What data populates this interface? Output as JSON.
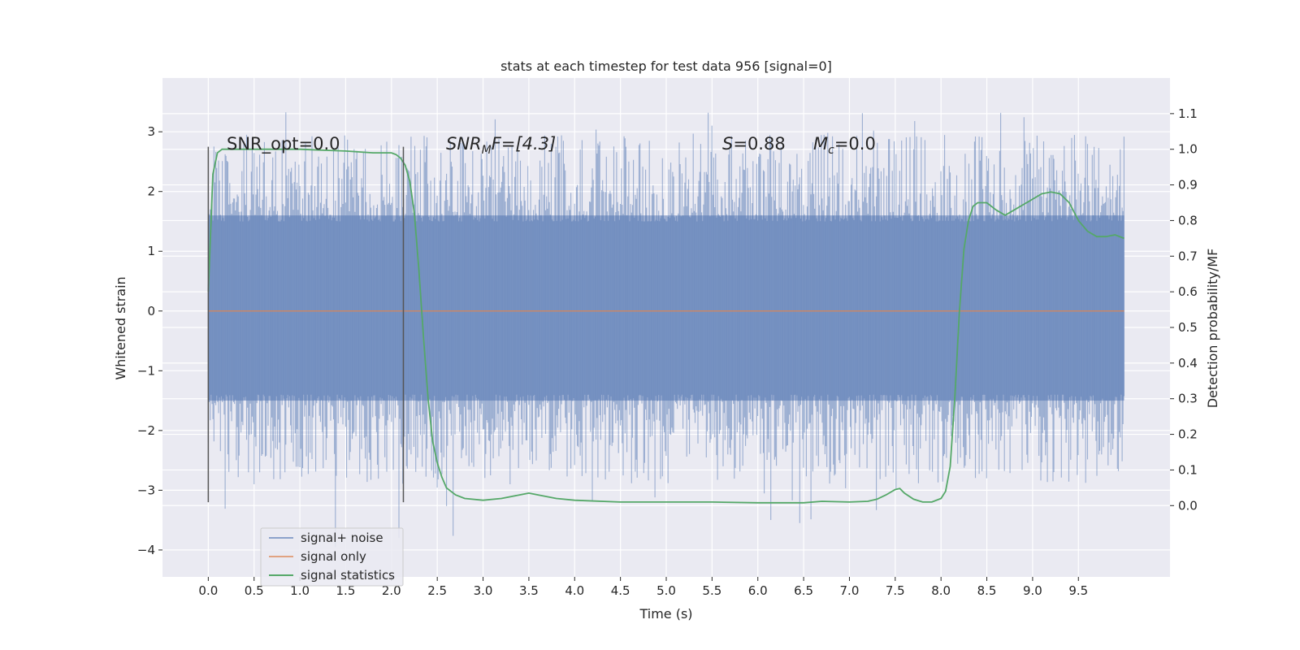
{
  "chart_data": {
    "type": "line",
    "title": "stats at each timestep for test data 956 [signal=0]",
    "xlabel": "Time (s)",
    "ylabel_left": "Whitened strain",
    "ylabel_right": "Detection probability/MF",
    "xlim": [
      -0.5,
      10.5
    ],
    "ylim_left": [
      -4.45,
      3.9
    ],
    "ylim_right": [
      -0.2,
      1.2
    ],
    "x_ticks": [
      "0.0",
      "0.5",
      "1.0",
      "1.5",
      "2.0",
      "2.5",
      "3.0",
      "3.5",
      "4.0",
      "4.5",
      "5.0",
      "5.5",
      "6.0",
      "6.5",
      "7.0",
      "7.5",
      "8.0",
      "8.5",
      "9.0",
      "9.5"
    ],
    "x_tick_values": [
      0.0,
      0.5,
      1.0,
      1.5,
      2.0,
      2.5,
      3.0,
      3.5,
      4.0,
      4.5,
      5.0,
      5.5,
      6.0,
      6.5,
      7.0,
      7.5,
      8.0,
      8.5,
      9.0,
      9.5
    ],
    "y_ticks_left": [
      "−4",
      "−3",
      "−2",
      "−1",
      "0",
      "1",
      "2",
      "3"
    ],
    "y_tick_values_left": [
      -4,
      -3,
      -2,
      -1,
      0,
      1,
      2,
      3
    ],
    "y_ticks_right": [
      "0.0",
      "0.1",
      "0.2",
      "0.3",
      "0.4",
      "0.5",
      "0.6",
      "0.7",
      "0.8",
      "0.9",
      "1.0",
      "1.1"
    ],
    "y_tick_values_right": [
      0.0,
      0.1,
      0.2,
      0.3,
      0.4,
      0.5,
      0.6,
      0.7,
      0.8,
      0.9,
      1.0,
      1.1
    ],
    "grid": true,
    "legend_position": "lower-left",
    "noise_band": {
      "x_range": [
        0.0,
        10.0
      ],
      "core_range": [
        -1.5,
        1.6
      ],
      "peak_max": 3.55,
      "peak_min": -4.05
    },
    "series": [
      {
        "name": "signal+ noise",
        "color": "#4c72b0",
        "axis": "left"
      },
      {
        "name": "signal only",
        "color": "#dd8452",
        "axis": "left",
        "x": [
          0.0,
          10.0
        ],
        "y": [
          0.0,
          0.0
        ]
      },
      {
        "name": "signal statistics",
        "color": "#55a868",
        "axis": "right",
        "x": [
          0.0,
          0.05,
          0.1,
          0.15,
          0.2,
          0.3,
          0.5,
          1.0,
          1.5,
          1.8,
          2.0,
          2.05,
          2.1,
          2.15,
          2.2,
          2.25,
          2.3,
          2.35,
          2.4,
          2.45,
          2.5,
          2.55,
          2.6,
          2.7,
          2.8,
          3.0,
          3.2,
          3.4,
          3.5,
          3.6,
          3.8,
          4.0,
          4.5,
          5.0,
          5.5,
          6.0,
          6.5,
          6.7,
          7.0,
          7.2,
          7.3,
          7.4,
          7.5,
          7.55,
          7.6,
          7.7,
          7.8,
          7.9,
          8.0,
          8.05,
          8.1,
          8.15,
          8.2,
          8.25,
          8.3,
          8.35,
          8.4,
          8.5,
          8.6,
          8.7,
          8.8,
          9.0,
          9.1,
          9.2,
          9.3,
          9.4,
          9.5,
          9.6,
          9.7,
          9.8,
          9.9,
          10.0
        ],
        "y": [
          0.6,
          0.93,
          0.99,
          1.0,
          1.0,
          1.0,
          1.0,
          1.0,
          0.995,
          0.99,
          0.99,
          0.985,
          0.975,
          0.955,
          0.91,
          0.82,
          0.66,
          0.47,
          0.3,
          0.18,
          0.12,
          0.08,
          0.05,
          0.03,
          0.02,
          0.015,
          0.02,
          0.03,
          0.035,
          0.03,
          0.02,
          0.015,
          0.01,
          0.01,
          0.01,
          0.008,
          0.008,
          0.012,
          0.01,
          0.012,
          0.018,
          0.03,
          0.045,
          0.048,
          0.035,
          0.018,
          0.01,
          0.01,
          0.02,
          0.04,
          0.11,
          0.3,
          0.54,
          0.72,
          0.8,
          0.84,
          0.85,
          0.85,
          0.83,
          0.815,
          0.83,
          0.86,
          0.875,
          0.88,
          0.875,
          0.85,
          0.8,
          0.77,
          0.755,
          0.755,
          0.76,
          0.75
        ]
      }
    ],
    "vlines": [
      {
        "x": 0.0,
        "y": [
          -3.2,
          2.75
        ]
      },
      {
        "x": 2.13,
        "y": [
          -3.2,
          2.75
        ]
      }
    ],
    "annotations": {
      "snr_opt": "SNR_opt=0.0",
      "snr_mf_main": "SNR",
      "snr_mf_sub": "M",
      "snr_mf_rest": "F=[4.3]",
      "s_main": "S",
      "s_rest": "=0.88",
      "mc_main": "M",
      "mc_sub": "c",
      "mc_rest": "=0.0"
    }
  }
}
